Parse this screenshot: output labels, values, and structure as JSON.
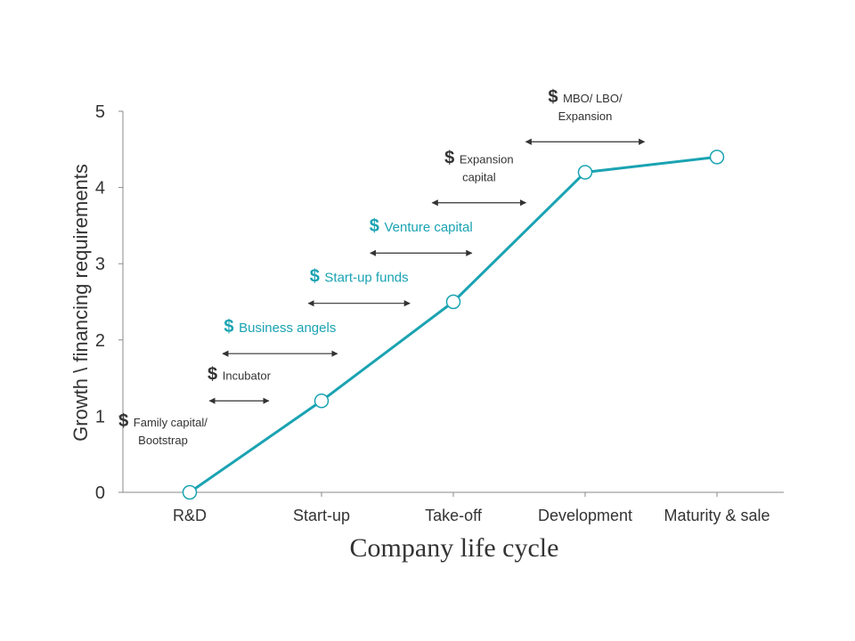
{
  "chart_data": {
    "type": "line",
    "categories": [
      "R&D",
      "Start-up",
      "Take-off",
      "Development",
      "Maturity & sale"
    ],
    "values": [
      0,
      1.2,
      2.5,
      4.2,
      4.4
    ],
    "xlabel": "Company life cycle",
    "ylabel": "Growth \\ financing requirements",
    "ylim": [
      0,
      5
    ],
    "yticks": [
      "0",
      "1",
      "2",
      "3",
      "4",
      "5"
    ],
    "grid": false,
    "colors": {
      "line": "#1aa3b2",
      "marker_fill": "#ffffff",
      "axis": "#888888",
      "arrow": "#333333",
      "accent_text": "#1aa3b2",
      "dark_text": "#333333"
    },
    "annotations": [
      {
        "symbol": "$",
        "lines": [
          "Family capital/",
          "Bootstrap"
        ],
        "color": "#333333",
        "x_start": null,
        "x_end": null,
        "level": 0.7
      },
      {
        "symbol": "$",
        "lines": [
          "Incubator"
        ],
        "color": "#333333",
        "x_start": 0.15,
        "x_end": 0.6,
        "level": 1.2
      },
      {
        "symbol": "$",
        "lines": [
          "Business angels"
        ],
        "color": "#1aa3b2",
        "x_start": 0.25,
        "x_end": 1.12,
        "level": 1.82
      },
      {
        "symbol": "$",
        "lines": [
          "Start-up funds"
        ],
        "color": "#1aa3b2",
        "x_start": 0.9,
        "x_end": 1.67,
        "level": 2.48
      },
      {
        "symbol": "$",
        "lines": [
          "Venture capital"
        ],
        "color": "#1aa3b2",
        "x_start": 1.37,
        "x_end": 2.14,
        "level": 3.14
      },
      {
        "symbol": "$",
        "lines": [
          "Expansion",
          "capital"
        ],
        "color": "#333333",
        "x_start": 1.84,
        "x_end": 2.55,
        "level": 3.8
      },
      {
        "symbol": "$",
        "lines": [
          "MBO/ LBO/",
          "Expansion"
        ],
        "color": "#333333",
        "x_start": 2.55,
        "x_end": 3.45,
        "level": 4.6
      }
    ]
  }
}
